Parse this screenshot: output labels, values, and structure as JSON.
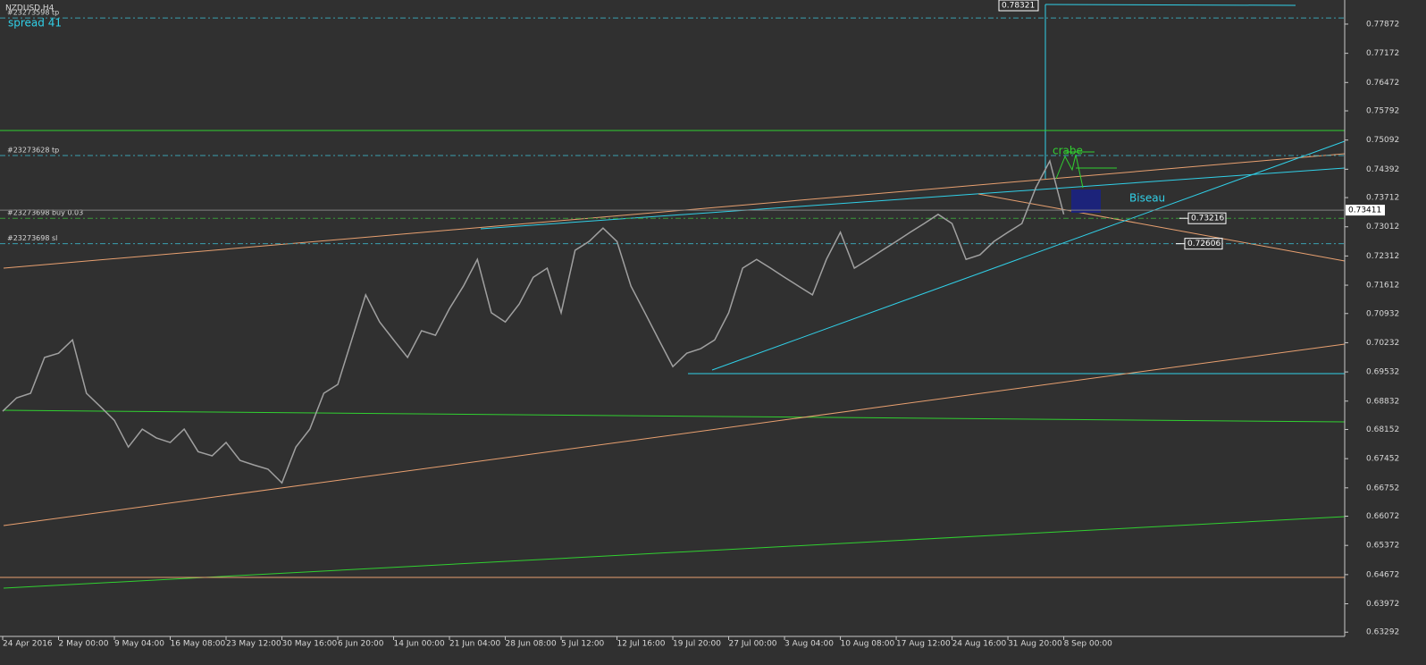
{
  "chart_data": {
    "type": "line",
    "symbol_label": "NZDUSD,H4",
    "spread_label": "spread 41",
    "color": "#a0a0a0",
    "x": [
      0,
      8,
      16,
      24,
      32,
      40,
      48,
      56,
      64,
      72,
      80,
      88,
      96,
      104,
      112,
      120,
      128,
      136,
      144,
      152,
      160,
      168,
      176,
      184,
      192,
      200,
      208,
      216,
      224,
      232,
      240,
      248,
      256,
      264,
      272,
      280,
      288,
      296,
      304,
      312,
      320,
      328,
      336,
      344,
      352,
      360,
      368,
      376,
      384,
      392,
      400,
      408,
      416,
      424,
      432,
      440,
      448,
      456,
      464,
      472,
      480,
      488,
      496,
      504,
      512,
      520,
      528,
      536,
      544,
      552,
      560,
      568,
      576,
      584,
      592,
      600,
      608
    ],
    "values": [
      0.6859,
      0.6891,
      0.6902,
      0.6988,
      0.6998,
      0.703,
      0.6902,
      0.687,
      0.6837,
      0.6773,
      0.6816,
      0.6795,
      0.6784,
      0.6816,
      0.6762,
      0.6752,
      0.6784,
      0.6741,
      0.673,
      0.672,
      0.6687,
      0.6773,
      0.6816,
      0.6902,
      0.6923,
      0.703,
      0.7138,
      0.7073,
      0.703,
      0.6988,
      0.7052,
      0.7041,
      0.7105,
      0.7159,
      0.7223,
      0.7095,
      0.7073,
      0.7116,
      0.718,
      0.7202,
      0.7095,
      0.7245,
      0.7266,
      0.7298,
      0.7266,
      0.7159,
      0.7095,
      0.703,
      0.6966,
      0.6998,
      0.7009,
      0.703,
      0.7095,
      0.7202,
      0.7223,
      0.7202,
      0.718,
      0.7159,
      0.7138,
      0.7223,
      0.7288,
      0.7202,
      0.7223,
      0.7245,
      0.7266,
      0.7288,
      0.7309,
      0.7331,
      0.7309,
      0.7223,
      0.7234,
      0.7266,
      0.7288,
      0.7309,
      0.7395,
      0.7459,
      0.7331
    ],
    "xlim": [
      0,
      770
    ],
    "xticks": [
      {
        "value": 0,
        "label": "24 Apr 2016"
      },
      {
        "value": 32,
        "label": "2 May 00:00"
      },
      {
        "value": 64,
        "label": "9 May 04:00"
      },
      {
        "value": 96,
        "label": "16 May 08:00"
      },
      {
        "value": 128,
        "label": "23 May 12:00"
      },
      {
        "value": 160,
        "label": "30 May 16:00"
      },
      {
        "value": 192,
        "label": "6 Jun 20:00"
      },
      {
        "value": 224,
        "label": "14 Jun 00:00"
      },
      {
        "value": 256,
        "label": "21 Jun 04:00"
      },
      {
        "value": 288,
        "label": "28 Jun 08:00"
      },
      {
        "value": 320,
        "label": "5 Jul 12:00"
      },
      {
        "value": 352,
        "label": "12 Jul 16:00"
      },
      {
        "value": 384,
        "label": "19 Jul 20:00"
      },
      {
        "value": 416,
        "label": "27 Jul 00:00"
      },
      {
        "value": 448,
        "label": "3 Aug 04:00"
      },
      {
        "value": 480,
        "label": "10 Aug 08:00"
      },
      {
        "value": 512,
        "label": "17 Aug 12:00"
      },
      {
        "value": 544,
        "label": "24 Aug 16:00"
      },
      {
        "value": 576,
        "label": "31 Aug 20:00"
      },
      {
        "value": 608,
        "label": "8 Sep 00:00"
      }
    ],
    "ylim": [
      0.6319,
      0.7845
    ],
    "yticks": [
      0.77872,
      0.77172,
      0.76472,
      0.75792,
      0.75092,
      0.74392,
      0.73712,
      0.73012,
      0.72312,
      0.71612,
      0.70932,
      0.70232,
      0.69532,
      0.68832,
      0.68152,
      0.67452,
      0.66752,
      0.66072,
      0.65372,
      0.64672,
      0.63972,
      0.63292
    ],
    "current_price": 0.73411,
    "levels": [
      {
        "name": "#23273598 tp",
        "value": 0.7802,
        "color": "#3aa0b0"
      },
      {
        "name": "#23273628 tp",
        "value": 0.7472,
        "color": "#3aa0b0"
      },
      {
        "name": "#23273698 buy 0.03",
        "value": 0.73216,
        "color": "#3a9a3a"
      },
      {
        "name": "#23273698 sl",
        "value": 0.72606,
        "color": "#3aa0b0"
      }
    ],
    "top_box": 0.78321,
    "annotations": [
      "crabe",
      "Biseau"
    ]
  }
}
